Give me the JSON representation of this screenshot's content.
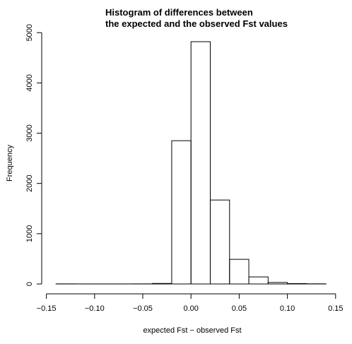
{
  "chart_data": {
    "type": "bar",
    "title_lines": [
      "Histogram of differences between",
      "the expected and the observed Fst values"
    ],
    "xlabel": "expected Fst − observed Fst",
    "ylabel": "Frequency",
    "xlim": [
      -0.14,
      0.14
    ],
    "ylim": [
      0,
      5000
    ],
    "bin_width": 0.02,
    "bins": [
      {
        "start": -0.14,
        "end": -0.12,
        "count": 2
      },
      {
        "start": -0.12,
        "end": -0.1,
        "count": 1
      },
      {
        "start": -0.1,
        "end": -0.08,
        "count": 1
      },
      {
        "start": -0.08,
        "end": -0.06,
        "count": 1
      },
      {
        "start": -0.06,
        "end": -0.04,
        "count": 2
      },
      {
        "start": -0.04,
        "end": -0.02,
        "count": 10
      },
      {
        "start": -0.02,
        "end": 0.0,
        "count": 2850
      },
      {
        "start": 0.0,
        "end": 0.02,
        "count": 4820
      },
      {
        "start": 0.02,
        "end": 0.04,
        "count": 1670
      },
      {
        "start": 0.04,
        "end": 0.06,
        "count": 490
      },
      {
        "start": 0.06,
        "end": 0.08,
        "count": 140
      },
      {
        "start": 0.08,
        "end": 0.1,
        "count": 30
      },
      {
        "start": 0.1,
        "end": 0.12,
        "count": 8
      },
      {
        "start": 0.12,
        "end": 0.14,
        "count": 3
      }
    ],
    "x_ticks": [
      -0.15,
      -0.1,
      -0.05,
      0.0,
      0.05,
      0.1,
      0.15
    ],
    "x_tick_labels": [
      "−0.15",
      "−0.10",
      "−0.05",
      "0.00",
      "0.05",
      "0.10",
      "0.15"
    ],
    "y_ticks": [
      0,
      1000,
      2000,
      3000,
      4000,
      5000
    ],
    "y_tick_labels": [
      "0",
      "1000",
      "2000",
      "3000",
      "4000",
      "5000"
    ],
    "grid": false,
    "legend": "none"
  }
}
